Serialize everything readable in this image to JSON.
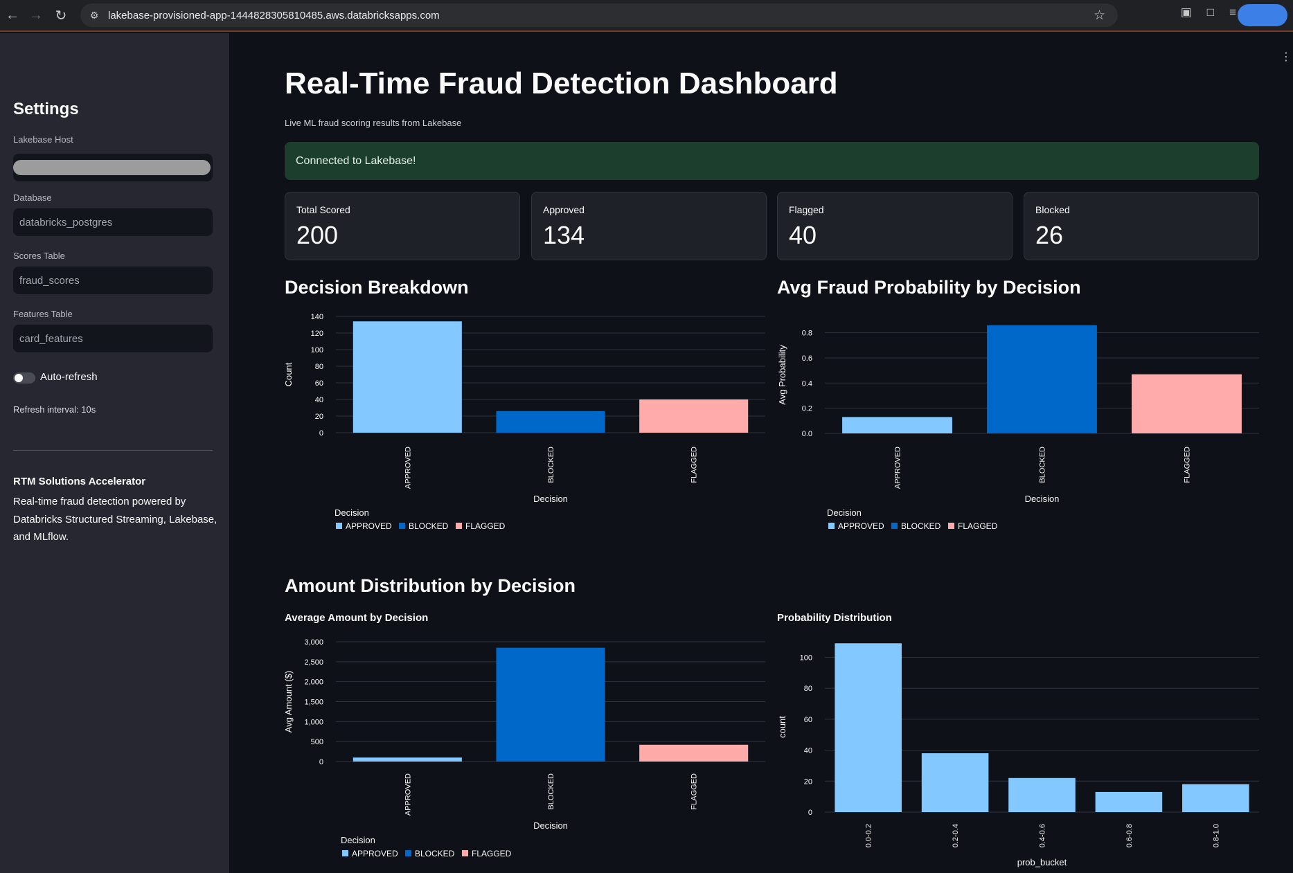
{
  "browser": {
    "url": "lakebase-provisioned-app-1444828305810485.aws.databricksapps.com"
  },
  "sidebar": {
    "title": "Settings",
    "fields": [
      {
        "label": "Lakebase Host",
        "value": ""
      },
      {
        "label": "Database",
        "value": "databricks_postgres"
      },
      {
        "label": "Scores Table",
        "value": "fraud_scores"
      },
      {
        "label": "Features Table",
        "value": "card_features"
      }
    ],
    "auto_refresh_label": "Auto-refresh",
    "auto_refresh_on": false,
    "refresh_interval": "Refresh interval: 10s",
    "about_title": "RTM Solutions Accelerator",
    "about_text": "Real-time fraud detection powered by Databricks Structured Streaming, Lakebase, and MLflow."
  },
  "main": {
    "title": "Real-Time Fraud Detection Dashboard",
    "subtitle": "Live ML fraud scoring results from Lakebase",
    "status": "Connected to Lakebase!",
    "metrics": [
      {
        "label": "Total Scored",
        "value": "200"
      },
      {
        "label": "Approved",
        "value": "134"
      },
      {
        "label": "Flagged",
        "value": "40"
      },
      {
        "label": "Blocked",
        "value": "26"
      }
    ],
    "section1_heading_left": "Decision Breakdown",
    "section1_heading_right": "Avg Fraud Probability by Decision",
    "section2_heading": "Amount Distribution by Decision",
    "section2_sub_left": "Average Amount by Decision",
    "section2_sub_right": "Probability Distribution"
  },
  "colors": {
    "APPROVED": "#83c9ff",
    "BLOCKED": "#0068c9",
    "FLAGGED": "#ffabab"
  },
  "chart_data": [
    {
      "type": "bar",
      "categories": [
        "APPROVED",
        "BLOCKED",
        "FLAGGED"
      ],
      "values": [
        134,
        26,
        40
      ],
      "xlabel": "Decision",
      "ylabel": "Count",
      "ylim": [
        0,
        140
      ],
      "yticks": [
        "0",
        "20",
        "40",
        "60",
        "80",
        "100",
        "120",
        "140"
      ],
      "legend_title": "Decision",
      "legend": [
        "APPROVED",
        "BLOCKED",
        "FLAGGED"
      ]
    },
    {
      "type": "bar",
      "categories": [
        "APPROVED",
        "BLOCKED",
        "FLAGGED"
      ],
      "values": [
        0.13,
        0.86,
        0.47
      ],
      "xlabel": "Decision",
      "ylabel": "Avg Probability",
      "ylim": [
        0,
        0.9
      ],
      "yticks": [
        "0.0",
        "0.2",
        "0.4",
        "0.6",
        "0.8"
      ],
      "legend_title": "Decision",
      "legend": [
        "APPROVED",
        "BLOCKED",
        "FLAGGED"
      ]
    },
    {
      "type": "bar",
      "categories": [
        "APPROVED",
        "BLOCKED",
        "FLAGGED"
      ],
      "values": [
        100,
        2850,
        420
      ],
      "xlabel": "Decision",
      "ylabel": "Avg Amount ($)",
      "ylim": [
        0,
        3000
      ],
      "yticks": [
        "0",
        "500",
        "1,000",
        "1,500",
        "2,000",
        "2,500",
        "3,000"
      ],
      "legend_title": "Decision",
      "legend": [
        "APPROVED",
        "BLOCKED",
        "FLAGGED"
      ]
    },
    {
      "type": "bar",
      "categories": [
        "0.0-0.2",
        "0.2-0.4",
        "0.4-0.6",
        "0.6-0.8",
        "0.8-1.0"
      ],
      "values": [
        109,
        38,
        22,
        13,
        18
      ],
      "xlabel": "prob_bucket",
      "ylabel": "count",
      "ylim": [
        0,
        100
      ],
      "yticks": [
        "0",
        "20",
        "40",
        "60",
        "80",
        "100"
      ]
    }
  ]
}
